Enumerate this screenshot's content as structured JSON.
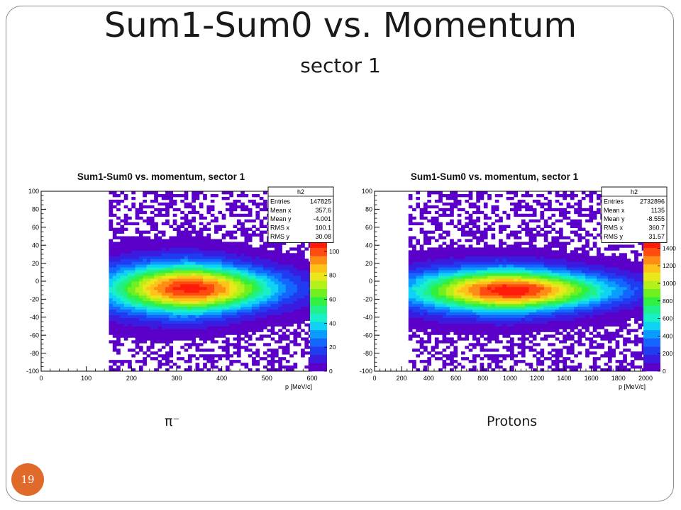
{
  "slide": {
    "title": "Sum1-Sum0 vs. Momentum",
    "subtitle": "sector 1",
    "page_number": "19",
    "accent_color": "#e06a2a"
  },
  "captions": {
    "left": "π⁻",
    "right": "Protons"
  },
  "chart_data": [
    {
      "type": "heatmap",
      "title": "Sum1-Sum0 vs. momentum, sector 1",
      "xlabel": "p [MeV/c]",
      "ylabel": "",
      "xlim": [
        0,
        600
      ],
      "ylim": [
        -100,
        100
      ],
      "x_ticks": [
        0,
        100,
        200,
        300,
        400,
        500,
        600
      ],
      "y_ticks": [
        -100,
        -80,
        -60,
        -40,
        -20,
        0,
        20,
        40,
        60,
        80,
        100
      ],
      "x_tick_labels": [
        "0",
        "100",
        "200",
        "300",
        "400",
        "500",
        "600"
      ],
      "y_tick_labels": [
        "-100",
        "-80",
        "-60",
        "-40",
        "-20",
        "0",
        "20",
        "40",
        "60",
        "80",
        "100"
      ],
      "colorbar": {
        "min": 0,
        "max": 110,
        "ticks": [
          0,
          20,
          40,
          60,
          80,
          100
        ],
        "tick_labels": [
          "0",
          "20",
          "40",
          "60",
          "80",
          "100"
        ]
      },
      "distribution": {
        "x_start": 150,
        "x_end": 600,
        "peak_x": 330,
        "peak_y": -8,
        "sigma_y": 14,
        "peak_count": 105,
        "spread": "dense core 180-410 MeV/c, sparse outliers beyond"
      },
      "stats_box": {
        "name": "h2",
        "rows": [
          {
            "label": "Entries",
            "value": "147825"
          },
          {
            "label": "Mean x",
            "value": "357.6"
          },
          {
            "label": "Mean y",
            "value": "-4.001"
          },
          {
            "label": "RMS x",
            "value": "100.1"
          },
          {
            "label": "RMS y",
            "value": "30.08"
          }
        ]
      }
    },
    {
      "type": "heatmap",
      "title": "Sum1-Sum0 vs. momentum, sector 1",
      "xlabel": "p [MeV/c]",
      "ylabel": "",
      "xlim": [
        0,
        2000
      ],
      "ylim": [
        -100,
        100
      ],
      "x_ticks": [
        0,
        200,
        400,
        600,
        800,
        1000,
        1200,
        1400,
        1600,
        1800,
        2000
      ],
      "y_ticks": [
        -100,
        -80,
        -60,
        -40,
        -20,
        0,
        20,
        40,
        60,
        80,
        100
      ],
      "x_tick_labels": [
        "0",
        "200",
        "400",
        "600",
        "800",
        "1000",
        "1200",
        "1400",
        "1600",
        "1800",
        "2000"
      ],
      "y_tick_labels": [
        "-100",
        "-80",
        "-60",
        "-40",
        "-20",
        "0",
        "20",
        "40",
        "60",
        "80",
        "100"
      ],
      "colorbar": {
        "min": 0,
        "max": 1500,
        "ticks": [
          0,
          200,
          400,
          600,
          800,
          1000,
          1200,
          1400
        ],
        "tick_labels": [
          "0",
          "200",
          "400",
          "600",
          "800",
          "1000",
          "1200",
          "1400"
        ]
      },
      "distribution": {
        "x_start": 250,
        "x_end": 2000,
        "peak_x": 1000,
        "peak_y": -10,
        "sigma_y": 12,
        "peak_count": 1450,
        "spread": "dense core 600-1800 MeV/c, narrowing at high momentum"
      },
      "stats_box": {
        "name": "h2",
        "rows": [
          {
            "label": "Entries",
            "value": "2732896"
          },
          {
            "label": "Mean x",
            "value": "1135"
          },
          {
            "label": "Mean y",
            "value": "-8.555"
          },
          {
            "label": "RMS x",
            "value": "360.7"
          },
          {
            "label": "RMS y",
            "value": "31.57"
          }
        ]
      }
    }
  ]
}
